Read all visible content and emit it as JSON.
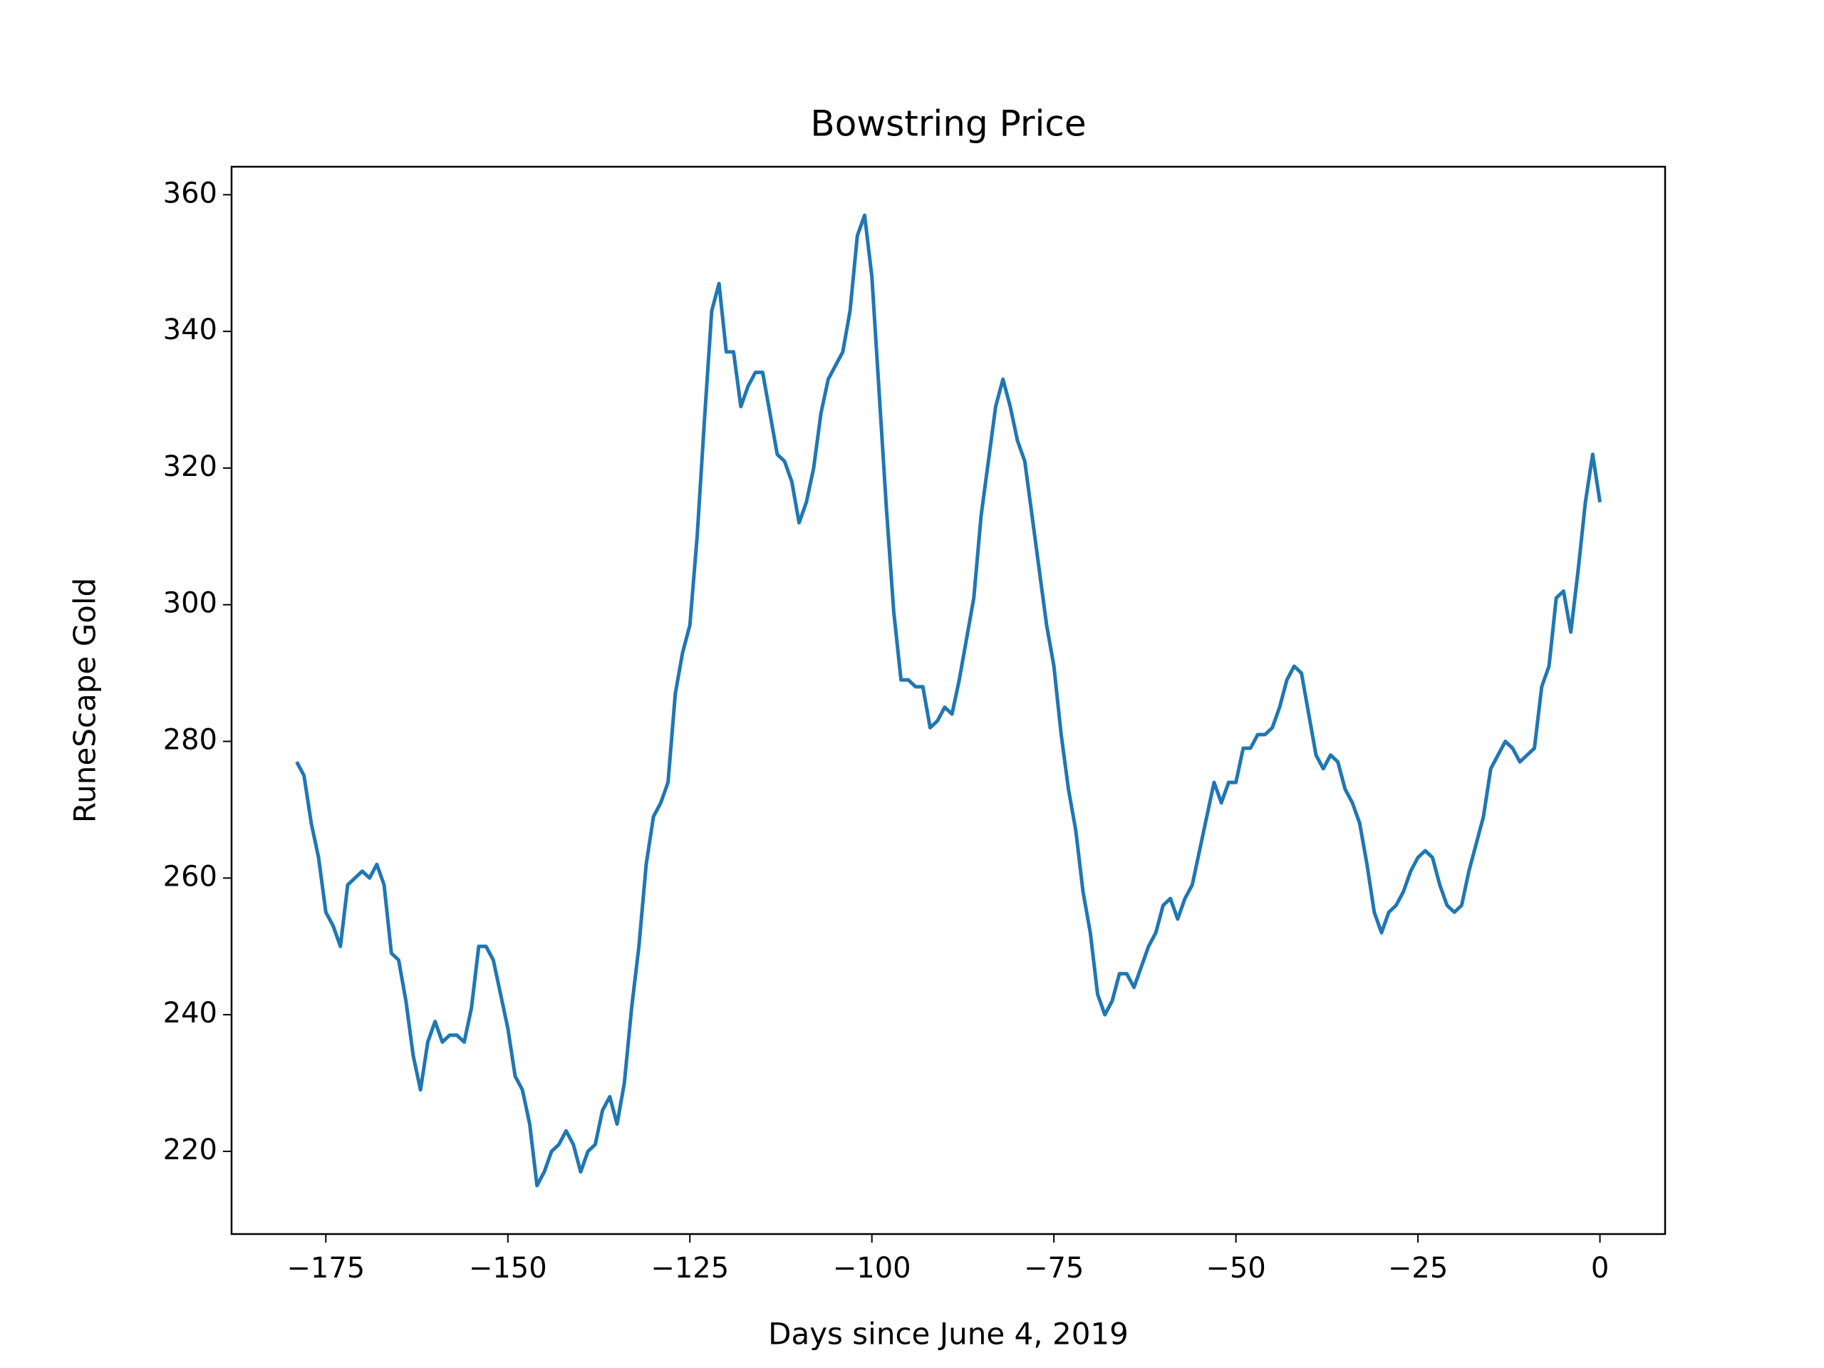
{
  "chart_data": {
    "type": "line",
    "title": "Bowstring Price",
    "x_label": "Days since June 4, 2019",
    "y_label": "RuneScape Gold",
    "x": [
      -179,
      -178,
      -177,
      -176,
      -175,
      -174,
      -173,
      -172,
      -171,
      -170,
      -169,
      -168,
      -167,
      -166,
      -165,
      -164,
      -163,
      -162,
      -161,
      -160,
      -159,
      -158,
      -157,
      -156,
      -155,
      -154,
      -153,
      -152,
      -151,
      -150,
      -149,
      -148,
      -147,
      -146,
      -145,
      -144,
      -143,
      -142,
      -141,
      -140,
      -139,
      -138,
      -137,
      -136,
      -135,
      -134,
      -133,
      -132,
      -131,
      -130,
      -129,
      -128,
      -127,
      -126,
      -125,
      -124,
      -123,
      -122,
      -121,
      -120,
      -119,
      -118,
      -117,
      -116,
      -115,
      -114,
      -113,
      -112,
      -111,
      -110,
      -109,
      -108,
      -107,
      -106,
      -105,
      -104,
      -103,
      -102,
      -101,
      -100,
      -99,
      -98,
      -97,
      -96,
      -95,
      -94,
      -93,
      -92,
      -91,
      -90,
      -89,
      -88,
      -87,
      -86,
      -85,
      -84,
      -83,
      -82,
      -81,
      -80,
      -79,
      -78,
      -77,
      -76,
      -75,
      -74,
      -73,
      -72,
      -71,
      -70,
      -69,
      -68,
      -67,
      -66,
      -65,
      -64,
      -63,
      -62,
      -61,
      -60,
      -59,
      -58,
      -57,
      -56,
      -55,
      -54,
      -53,
      -52,
      -51,
      -50,
      -49,
      -48,
      -47,
      -46,
      -45,
      -44,
      -43,
      -42,
      -41,
      -40,
      -39,
      -38,
      -37,
      -36,
      -35,
      -34,
      -33,
      -32,
      -31,
      -30,
      -29,
      -28,
      -27,
      -26,
      -25,
      -24,
      -23,
      -22,
      -21,
      -20,
      -19,
      -18,
      -17,
      -16,
      -15,
      -14,
      -13,
      -12,
      -11,
      -10,
      -9,
      -8,
      -7,
      -6,
      -5,
      -4,
      -3,
      -2,
      -1,
      0
    ],
    "series": [
      {
        "color": "#1f77b4",
        "values": [
          277,
          275,
          268,
          263,
          255,
          253,
          250,
          259,
          260,
          261,
          260,
          262,
          259,
          249,
          248,
          242,
          234,
          229,
          236,
          239,
          236,
          237,
          237,
          236,
          241,
          250,
          250,
          248,
          243,
          238,
          231,
          229,
          224,
          215,
          217,
          220,
          221,
          223,
          221,
          217,
          220,
          221,
          226,
          228,
          224,
          230,
          241,
          250,
          262,
          269,
          271,
          274,
          287,
          293,
          297,
          310,
          327,
          343,
          347,
          337,
          337,
          329,
          332,
          334,
          334,
          328,
          322,
          321,
          318,
          312,
          315,
          320,
          328,
          333,
          335,
          337,
          343,
          354,
          357,
          348,
          331,
          314,
          299,
          289,
          289,
          288,
          288,
          282,
          283,
          285,
          284,
          289,
          295,
          301,
          313,
          321,
          329,
          333,
          329,
          324,
          321,
          313,
          305,
          297,
          291,
          281,
          273,
          267,
          258,
          252,
          243,
          240,
          242,
          246,
          246,
          244,
          247,
          250,
          252,
          256,
          257,
          254,
          257,
          259,
          264,
          269,
          274,
          271,
          274,
          274,
          279,
          279,
          281,
          281,
          282,
          285,
          289,
          291,
          290,
          284,
          278,
          276,
          278,
          277,
          273,
          271,
          268,
          262,
          255,
          252,
          255,
          256,
          258,
          261,
          263,
          264,
          263,
          259,
          256,
          255,
          256,
          261,
          265,
          269,
          276,
          278,
          280,
          279,
          277,
          278,
          279,
          288,
          291,
          301,
          302,
          296,
          305,
          315,
          322,
          315
        ]
      }
    ],
    "xlim": [
      -187.95,
      8.95
    ],
    "ylim": [
      207.9,
      364.1
    ],
    "xticks": [
      {
        "value": -175,
        "label": "−175"
      },
      {
        "value": -150,
        "label": "−150"
      },
      {
        "value": -125,
        "label": "−125"
      },
      {
        "value": -100,
        "label": "−100"
      },
      {
        "value": -75,
        "label": "−75"
      },
      {
        "value": -50,
        "label": "−50"
      },
      {
        "value": -25,
        "label": "−25"
      },
      0
    ],
    "yticks": [
      220,
      240,
      260,
      280,
      300,
      320,
      340,
      360
    ]
  }
}
